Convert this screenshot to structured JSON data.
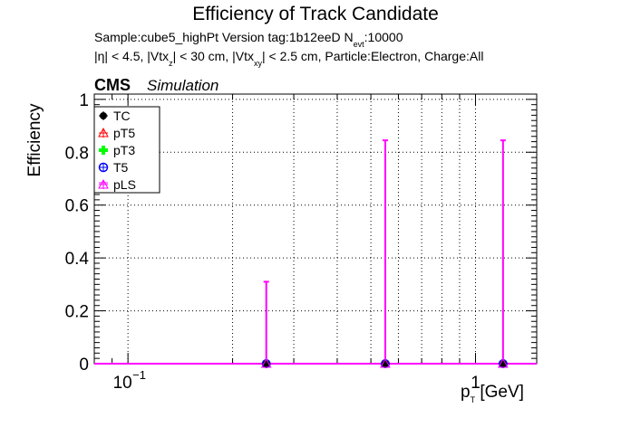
{
  "header": {
    "title": "Efficiency of Track Candidate",
    "sample_line": "Sample:cube5_highPt   Version tag:1b12eeD  N",
    "sample_sub": "evt",
    "sample_tail": ":10000",
    "cuts_a": "|η| < 4.5, |Vtx",
    "cuts_sub_z": "z",
    "cuts_b": "| < 30 cm, |Vtx",
    "cuts_sub_xy": "xy",
    "cuts_c": "| < 2.5 cm, Particle:Electron, Charge:All",
    "cms": "CMS",
    "simulation": "Simulation"
  },
  "chart_data": {
    "type": "scatter",
    "xlabel_main": "p",
    "xlabel_sub": "T",
    "xlabel_unit": " [GeV]",
    "ylabel": "Efficiency",
    "x_scale": "log",
    "xlim": [
      0.08,
      1.5
    ],
    "ylim": [
      0,
      1.02
    ],
    "grid": true,
    "legend_position": "top-left",
    "yticks": [
      "0",
      "0.2",
      "0.4",
      "0.6",
      "0.8",
      "1"
    ],
    "xtick_labels": {
      "tenth_base": "10",
      "tenth_exp": "−1",
      "one": "1"
    },
    "series": [
      {
        "name": "TC",
        "color": "#000000",
        "marker": "circle-filled"
      },
      {
        "name": "pT5",
        "color": "#ff0000",
        "marker": "triangle-open"
      },
      {
        "name": "pT3",
        "color": "#00ff00",
        "marker": "cross-filled"
      },
      {
        "name": "T5",
        "color": "#0000ff",
        "marker": "circle-open"
      },
      {
        "name": "pLS",
        "color": "#ff00ff",
        "marker": "star-open"
      }
    ],
    "points": [
      {
        "x": 0.25,
        "x_lo": 0.245,
        "x_hi": 0.255,
        "y": 0.0,
        "y_hi": 0.31
      },
      {
        "x": 0.55,
        "x_lo": 0.54,
        "x_hi": 0.56,
        "y": 0.0,
        "y_hi": 0.845
      },
      {
        "x": 1.2,
        "x_lo": 1.1,
        "x_hi": 1.3,
        "y": 0.0,
        "y_hi": 0.845
      }
    ]
  }
}
